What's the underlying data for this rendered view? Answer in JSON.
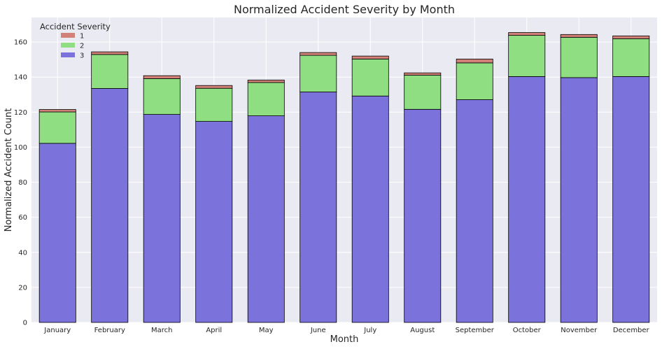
{
  "chart_data": {
    "type": "bar",
    "stacked": true,
    "title": "Normalized Accident Severity by Month",
    "xlabel": "Month",
    "ylabel": "Normalized Accident Count",
    "ylim": [
      0,
      174
    ],
    "yticks": [
      0,
      20,
      40,
      60,
      80,
      100,
      120,
      140,
      160
    ],
    "grid": true,
    "legend": {
      "title": "Accident Severity",
      "placement": "top-left"
    },
    "categories": [
      "January",
      "February",
      "March",
      "April",
      "May",
      "June",
      "July",
      "August",
      "September",
      "October",
      "November",
      "December"
    ],
    "series": [
      {
        "name": "3",
        "color": "#7b72db",
        "values": [
          102.2,
          133.5,
          118.7,
          114.7,
          117.9,
          131.5,
          129.2,
          121.6,
          127.1,
          140.3,
          139.7,
          140.3
        ]
      },
      {
        "name": "2",
        "color": "#8fdf82",
        "values": [
          17.9,
          19.4,
          20.4,
          18.9,
          19.0,
          20.9,
          21.1,
          19.5,
          21.0,
          23.5,
          23.0,
          21.6
        ]
      },
      {
        "name": "1",
        "color": "#d28179",
        "values": [
          1.4,
          1.5,
          1.7,
          1.6,
          1.4,
          1.6,
          1.7,
          1.3,
          2.2,
          1.6,
          1.6,
          1.6
        ]
      }
    ]
  }
}
